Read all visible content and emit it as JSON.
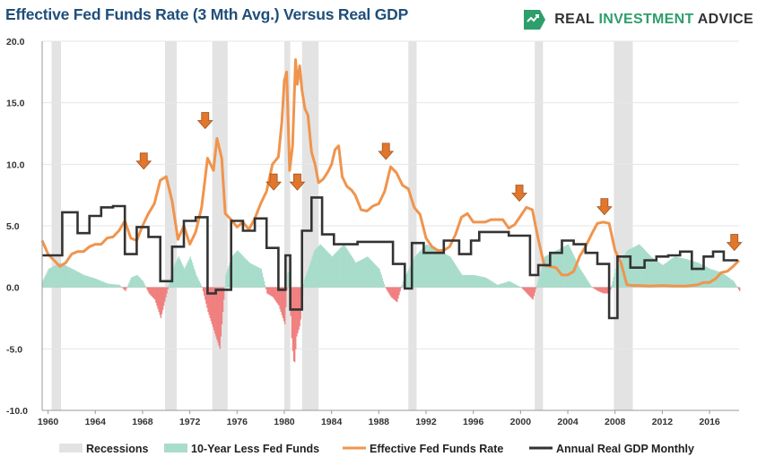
{
  "title": "Effective Fed Funds Rate (3 Mth Avg.) Versus Real GDP",
  "logo": {
    "name_part1": "REAL ",
    "name_part2": "INVESTMENT",
    "name_part3": " ADVICE"
  },
  "colors": {
    "recession": "#e3e3e3",
    "spread_pos": "#a8dccb",
    "spread_neg": "#f08080",
    "fed_funds": "#f0944d",
    "gdp": "#333333",
    "arrow": "#e0772c",
    "arrow_edge": "#a3521b"
  },
  "chart_data": {
    "type": "line",
    "title": "Effective Fed Funds Rate (3 Mth Avg.) Versus Real GDP",
    "xlabel": "",
    "ylabel": "",
    "xlim": [
      1959.5,
      2018.5
    ],
    "ylim": [
      -10,
      20
    ],
    "y_ticks": [
      "20.0",
      "15.0",
      "10.0",
      "5.0",
      "0.0",
      "-5.0",
      "-10.0"
    ],
    "y_tick_values": [
      20,
      15,
      10,
      5,
      0,
      -5,
      -10
    ],
    "x_ticks": [
      "1960",
      "1964",
      "1968",
      "1972",
      "1976",
      "1980",
      "1984",
      "1988",
      "1992",
      "1996",
      "2000",
      "2004",
      "2008",
      "2012",
      "2016"
    ],
    "x_tick_values": [
      1960,
      1964,
      1968,
      1972,
      1976,
      1980,
      1984,
      1988,
      1992,
      1996,
      2000,
      2004,
      2008,
      2012,
      2016
    ],
    "legend": [
      "Recessions",
      "10-Year Less Fed Funds",
      "Effective Fed Funds Rate",
      "Annual Real GDP Monthly"
    ],
    "legend_position": "bottom",
    "recessions": [
      [
        1960.3,
        1961.1
      ],
      [
        1969.9,
        1970.9
      ],
      [
        1973.9,
        1975.2
      ],
      [
        1980.0,
        1980.5
      ],
      [
        1981.5,
        1982.9
      ],
      [
        1990.5,
        1991.2
      ],
      [
        2001.2,
        2001.9
      ],
      [
        2007.9,
        2009.5
      ]
    ],
    "fed_funds": {
      "name": "Effective Fed Funds Rate",
      "x": [
        1959.5,
        1960.0,
        1960.5,
        1961.0,
        1961.5,
        1962.0,
        1962.5,
        1963.0,
        1963.5,
        1964.0,
        1964.5,
        1965.0,
        1965.5,
        1966.0,
        1966.5,
        1967.0,
        1967.5,
        1968.0,
        1968.5,
        1969.0,
        1969.5,
        1970.0,
        1970.5,
        1971.0,
        1971.5,
        1972.0,
        1972.5,
        1973.0,
        1973.5,
        1974.0,
        1974.3,
        1974.7,
        1975.0,
        1975.5,
        1976.0,
        1976.5,
        1977.0,
        1977.5,
        1978.0,
        1978.5,
        1979.0,
        1979.5,
        1979.8,
        1980.0,
        1980.2,
        1980.45,
        1980.7,
        1980.95,
        1981.1,
        1981.3,
        1981.5,
        1981.75,
        1982.0,
        1982.3,
        1982.6,
        1982.9,
        1983.3,
        1983.7,
        1984.0,
        1984.3,
        1984.6,
        1984.9,
        1985.3,
        1985.7,
        1986.0,
        1986.5,
        1987.0,
        1987.5,
        1988.0,
        1988.5,
        1989.0,
        1989.5,
        1990.0,
        1990.5,
        1991.0,
        1991.5,
        1992.0,
        1992.5,
        1993.0,
        1993.5,
        1994.0,
        1994.5,
        1995.0,
        1995.5,
        1996.0,
        1996.5,
        1997.0,
        1997.5,
        1998.0,
        1998.5,
        1999.0,
        1999.5,
        2000.0,
        2000.5,
        2001.0,
        2001.5,
        2002.0,
        2002.5,
        2003.0,
        2003.5,
        2004.0,
        2004.5,
        2005.0,
        2005.5,
        2006.0,
        2006.5,
        2007.0,
        2007.5,
        2008.0,
        2008.5,
        2009.0,
        2009.5,
        2010.0,
        2011.0,
        2012.0,
        2013.0,
        2014.0,
        2015.0,
        2015.5,
        2016.0,
        2016.5,
        2017.0,
        2017.5,
        2018.0,
        2018.5
      ],
      "values": [
        3.8,
        2.7,
        2.2,
        1.7,
        2.0,
        2.7,
        2.9,
        2.9,
        3.3,
        3.5,
        3.5,
        4.0,
        4.1,
        4.6,
        5.4,
        4.0,
        3.8,
        5.0,
        6.0,
        6.8,
        8.7,
        9.0,
        7.0,
        3.9,
        5.0,
        3.5,
        4.5,
        6.5,
        10.5,
        9.5,
        12.1,
        10.5,
        6.0,
        5.5,
        4.9,
        5.3,
        4.7,
        5.6,
        6.8,
        7.8,
        10.0,
        10.6,
        13.5,
        16.8,
        17.5,
        9.5,
        11.5,
        18.5,
        16.5,
        18.0,
        16.0,
        14.5,
        14.0,
        11.0,
        10.0,
        8.5,
        8.8,
        9.4,
        10.0,
        11.2,
        11.5,
        9.0,
        8.2,
        7.9,
        7.5,
        6.3,
        6.2,
        6.6,
        6.8,
        7.8,
        9.8,
        9.3,
        8.3,
        8.0,
        6.5,
        5.9,
        4.0,
        3.3,
        3.0,
        3.0,
        3.3,
        4.3,
        5.7,
        6.0,
        5.3,
        5.3,
        5.3,
        5.5,
        5.5,
        5.5,
        4.8,
        5.1,
        5.8,
        6.5,
        6.3,
        3.9,
        1.8,
        1.7,
        1.6,
        1.0,
        1.0,
        1.3,
        2.5,
        3.3,
        4.3,
        5.2,
        5.3,
        5.2,
        3.0,
        2.0,
        0.2,
        0.15,
        0.15,
        0.1,
        0.15,
        0.1,
        0.1,
        0.2,
        0.4,
        0.4,
        0.7,
        1.2,
        1.3,
        1.7,
        2.2
      ]
    },
    "gdp": {
      "name": "Annual Real GDP Monthly",
      "x": [
        1959.5,
        1960.3,
        1961.2,
        1962.5,
        1963.5,
        1964.5,
        1965.5,
        1966.5,
        1967.5,
        1968.5,
        1969.5,
        1970.5,
        1971.5,
        1972.5,
        1973.5,
        1974.2,
        1975.5,
        1976.5,
        1977.5,
        1978.5,
        1979.5,
        1980.1,
        1980.5,
        1981.5,
        1982.3,
        1983.2,
        1984.2,
        1985.2,
        1986.2,
        1987.2,
        1988.2,
        1989.2,
        1990.2,
        1990.8,
        1991.8,
        1993.5,
        1994.8,
        1995.8,
        1996.5,
        1997.5,
        1999.0,
        2000.8,
        2001.5,
        2002.5,
        2003.5,
        2004.5,
        2005.5,
        2006.5,
        2007.5,
        2008.2,
        2009.3,
        2010.5,
        2011.5,
        2012.5,
        2013.5,
        2014.5,
        2015.5,
        2016.3,
        2017.2,
        2018.2
      ],
      "values": [
        2.6,
        2.6,
        6.1,
        4.4,
        5.8,
        6.5,
        6.6,
        2.7,
        4.9,
        4.1,
        0.5,
        3.3,
        5.4,
        5.7,
        -0.5,
        -0.2,
        5.4,
        4.6,
        5.6,
        3.2,
        -0.2,
        2.6,
        -1.8,
        4.6,
        7.3,
        4.3,
        3.5,
        3.5,
        3.7,
        3.7,
        3.7,
        1.9,
        -0.1,
        3.6,
        2.8,
        3.8,
        2.7,
        3.8,
        4.5,
        4.5,
        4.2,
        1.0,
        1.8,
        2.8,
        3.8,
        3.5,
        2.8,
        1.9,
        -2.5,
        2.5,
        1.6,
        2.2,
        2.5,
        2.6,
        2.9,
        1.5,
        2.5,
        2.9,
        2.2,
        2.2
      ]
    },
    "spread": {
      "name": "10-Year Less Fed Funds",
      "x": [
        1959.5,
        1960.0,
        1961.0,
        1962.0,
        1963.0,
        1964.0,
        1965.0,
        1966.0,
        1966.5,
        1967.0,
        1967.5,
        1968.0,
        1968.5,
        1969.0,
        1969.5,
        1970.0,
        1970.5,
        1971.0,
        1971.5,
        1972.0,
        1972.5,
        1973.0,
        1973.5,
        1974.0,
        1974.5,
        1975.0,
        1975.5,
        1976.0,
        1977.0,
        1978.0,
        1978.5,
        1979.0,
        1979.5,
        1980.0,
        1980.3,
        1980.6,
        1980.8,
        1981.0,
        1981.3,
        1981.6,
        1982.0,
        1982.5,
        1983.0,
        1984.0,
        1985.0,
        1986.0,
        1987.0,
        1988.0,
        1988.5,
        1989.0,
        1989.5,
        1990.0,
        1991.0,
        1992.0,
        1993.0,
        1994.0,
        1995.0,
        1996.0,
        1997.0,
        1998.0,
        1999.0,
        2000.0,
        2000.5,
        2001.0,
        2002.0,
        2003.0,
        2004.0,
        2005.0,
        2006.0,
        2006.5,
        2007.0,
        2007.5,
        2008.0,
        2009.0,
        2010.0,
        2011.0,
        2012.0,
        2013.0,
        2014.0,
        2015.0,
        2016.0,
        2017.0,
        2018.0,
        2018.5
      ],
      "values": [
        0.5,
        1.5,
        2.0,
        1.5,
        1.0,
        0.7,
        0.3,
        0.2,
        -0.3,
        0.8,
        1.0,
        0.5,
        -0.5,
        -1.0,
        -2.5,
        -0.5,
        1.5,
        2.5,
        1.5,
        2.5,
        1.0,
        0.0,
        -2.0,
        -3.5,
        -5.0,
        1.0,
        2.5,
        3.0,
        2.0,
        1.5,
        -0.5,
        -0.8,
        -1.5,
        -3.0,
        2.0,
        -4.5,
        -6.5,
        -4.0,
        -3.0,
        0.5,
        1.5,
        3.0,
        3.5,
        2.5,
        3.5,
        2.0,
        2.5,
        1.5,
        0.0,
        -0.8,
        -1.2,
        0.5,
        2.5,
        3.5,
        3.0,
        2.5,
        1.0,
        1.0,
        0.8,
        0.2,
        0.5,
        0.0,
        -0.5,
        -1.0,
        2.5,
        3.0,
        3.5,
        1.5,
        0.0,
        -0.3,
        -0.5,
        -0.5,
        1.5,
        3.0,
        3.5,
        2.5,
        1.8,
        2.5,
        2.3,
        2.0,
        1.5,
        1.2,
        0.5,
        -0.3
      ]
    },
    "arrows": [
      {
        "x": 1968.1,
        "y": 9.6
      },
      {
        "x": 1973.3,
        "y": 12.9
      },
      {
        "x": 1979.1,
        "y": 7.9
      },
      {
        "x": 1981.1,
        "y": 7.9
      },
      {
        "x": 1988.6,
        "y": 10.4
      },
      {
        "x": 1999.9,
        "y": 7.0
      },
      {
        "x": 2007.1,
        "y": 5.9
      },
      {
        "x": 2018.1,
        "y": 3.0
      }
    ]
  }
}
